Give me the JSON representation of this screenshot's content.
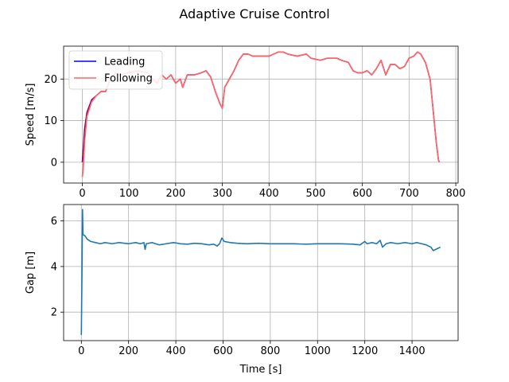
{
  "figure": {
    "title": "Adaptive Cruise Control"
  },
  "chart_data": [
    {
      "type": "line",
      "ylabel": "Speed [m/s]",
      "xlabel": "",
      "xlim": [
        -40,
        805
      ],
      "ylim": [
        -5,
        27.9
      ],
      "xticks": [
        0,
        100,
        200,
        300,
        400,
        500,
        600,
        700,
        800
      ],
      "yticks": [
        0,
        10,
        20
      ],
      "grid": true,
      "legend": "top-left",
      "series": [
        {
          "name": "Leading",
          "color": "#0000ff",
          "points": [
            [
              0,
              0
            ],
            [
              5,
              8
            ],
            [
              10,
              12
            ],
            [
              20,
              15
            ],
            [
              30,
              16
            ],
            [
              40,
              17
            ],
            [
              50,
              17
            ],
            [
              60,
              20
            ],
            [
              70,
              21.5
            ],
            [
              80,
              21
            ],
            [
              100,
              21.5
            ],
            [
              120,
              22
            ],
            [
              140,
              21.5
            ],
            [
              150,
              20
            ],
            [
              160,
              19
            ],
            [
              170,
              21
            ],
            [
              180,
              20
            ],
            [
              190,
              21
            ],
            [
              200,
              19
            ],
            [
              210,
              20
            ],
            [
              215,
              18
            ],
            [
              225,
              21
            ],
            [
              240,
              21
            ],
            [
              255,
              21.5
            ],
            [
              265,
              22
            ],
            [
              275,
              20.5
            ],
            [
              285,
              17
            ],
            [
              295,
              14
            ],
            [
              300,
              13
            ],
            [
              305,
              18
            ],
            [
              315,
              20
            ],
            [
              325,
              22
            ],
            [
              335,
              24.5
            ],
            [
              345,
              26
            ],
            [
              355,
              26
            ],
            [
              365,
              25.5
            ],
            [
              380,
              25.5
            ],
            [
              400,
              25.5
            ],
            [
              420,
              26.5
            ],
            [
              430,
              26.5
            ],
            [
              440,
              26
            ],
            [
              460,
              25.5
            ],
            [
              480,
              26
            ],
            [
              490,
              25
            ],
            [
              510,
              24.5
            ],
            [
              525,
              25
            ],
            [
              545,
              25
            ],
            [
              555,
              24.5
            ],
            [
              570,
              24
            ],
            [
              580,
              22
            ],
            [
              590,
              21.5
            ],
            [
              600,
              21.5
            ],
            [
              610,
              22
            ],
            [
              620,
              21
            ],
            [
              630,
              22.5
            ],
            [
              640,
              24.5
            ],
            [
              650,
              21
            ],
            [
              660,
              23.5
            ],
            [
              670,
              23.5
            ],
            [
              680,
              22.5
            ],
            [
              690,
              23
            ],
            [
              700,
              25
            ],
            [
              710,
              25.5
            ],
            [
              718,
              26.5
            ],
            [
              725,
              26
            ],
            [
              735,
              24
            ],
            [
              745,
              20
            ],
            [
              752,
              12
            ],
            [
              758,
              5
            ],
            [
              763,
              0.5
            ],
            [
              765,
              0
            ]
          ]
        },
        {
          "name": "Following",
          "color": "#ff6666",
          "points": [
            [
              0,
              -3.5
            ],
            [
              2,
              -1.5
            ],
            [
              5,
              5
            ],
            [
              10,
              11
            ],
            [
              20,
              14.5
            ],
            [
              30,
              16
            ],
            [
              40,
              17
            ],
            [
              50,
              17
            ],
            [
              60,
              20
            ],
            [
              70,
              21.5
            ],
            [
              80,
              21
            ],
            [
              100,
              21.5
            ],
            [
              120,
              22
            ],
            [
              140,
              21.5
            ],
            [
              150,
              20
            ],
            [
              160,
              19
            ],
            [
              170,
              21
            ],
            [
              180,
              20
            ],
            [
              190,
              21
            ],
            [
              200,
              19
            ],
            [
              210,
              20
            ],
            [
              215,
              18
            ],
            [
              225,
              21
            ],
            [
              240,
              21
            ],
            [
              255,
              21.5
            ],
            [
              265,
              22
            ],
            [
              275,
              20.5
            ],
            [
              285,
              17
            ],
            [
              295,
              14
            ],
            [
              300,
              13
            ],
            [
              305,
              18
            ],
            [
              315,
              20
            ],
            [
              325,
              22
            ],
            [
              335,
              24.5
            ],
            [
              345,
              26
            ],
            [
              355,
              26
            ],
            [
              365,
              25.5
            ],
            [
              380,
              25.5
            ],
            [
              400,
              25.5
            ],
            [
              420,
              26.5
            ],
            [
              430,
              26.5
            ],
            [
              440,
              26
            ],
            [
              460,
              25.5
            ],
            [
              480,
              26
            ],
            [
              490,
              25
            ],
            [
              510,
              24.5
            ],
            [
              525,
              25
            ],
            [
              545,
              25
            ],
            [
              555,
              24.5
            ],
            [
              570,
              24
            ],
            [
              580,
              22
            ],
            [
              590,
              21.5
            ],
            [
              600,
              21.5
            ],
            [
              610,
              22
            ],
            [
              620,
              21
            ],
            [
              630,
              22.5
            ],
            [
              640,
              24.5
            ],
            [
              650,
              21
            ],
            [
              660,
              23.5
            ],
            [
              670,
              23.5
            ],
            [
              680,
              22.5
            ],
            [
              690,
              23
            ],
            [
              700,
              25
            ],
            [
              710,
              25.5
            ],
            [
              718,
              26.5
            ],
            [
              725,
              26
            ],
            [
              735,
              24
            ],
            [
              745,
              20
            ],
            [
              752,
              12
            ],
            [
              758,
              5
            ],
            [
              763,
              0.5
            ],
            [
              765,
              0
            ]
          ]
        }
      ],
      "overlap_color": "#7f007f"
    },
    {
      "type": "line",
      "ylabel": "Gap [m]",
      "xlabel": "Time [s]",
      "xlim": [
        -75,
        1595
      ],
      "ylim": [
        0.75,
        6.72
      ],
      "xticks": [
        0,
        200,
        400,
        600,
        800,
        1000,
        1200,
        1400
      ],
      "yticks": [
        2,
        4,
        6
      ],
      "grid": true,
      "series": [
        {
          "color": "#1f77b4",
          "points": [
            [
              0,
              1
            ],
            [
              3,
              4
            ],
            [
              5,
              6.5
            ],
            [
              7,
              5.4
            ],
            [
              15,
              5.35
            ],
            [
              25,
              5.2
            ],
            [
              40,
              5.1
            ],
            [
              60,
              5.05
            ],
            [
              80,
              5.0
            ],
            [
              100,
              5.05
            ],
            [
              130,
              5.0
            ],
            [
              160,
              5.05
            ],
            [
              200,
              5.0
            ],
            [
              230,
              5.05
            ],
            [
              250,
              5.0
            ],
            [
              265,
              5.05
            ],
            [
              270,
              4.75
            ],
            [
              275,
              5.0
            ],
            [
              300,
              5.05
            ],
            [
              330,
              4.95
            ],
            [
              360,
              5.0
            ],
            [
              390,
              5.05
            ],
            [
              420,
              5.0
            ],
            [
              450,
              4.98
            ],
            [
              480,
              5.02
            ],
            [
              510,
              5.0
            ],
            [
              540,
              4.95
            ],
            [
              560,
              4.98
            ],
            [
              575,
              4.9
            ],
            [
              585,
              5.0
            ],
            [
              595,
              5.25
            ],
            [
              605,
              5.1
            ],
            [
              630,
              5.05
            ],
            [
              660,
              5.02
            ],
            [
              700,
              5.0
            ],
            [
              750,
              5.02
            ],
            [
              800,
              5.0
            ],
            [
              850,
              5.0
            ],
            [
              900,
              5.0
            ],
            [
              950,
              4.98
            ],
            [
              1000,
              5.0
            ],
            [
              1050,
              5.0
            ],
            [
              1100,
              5.0
            ],
            [
              1150,
              4.98
            ],
            [
              1180,
              4.95
            ],
            [
              1200,
              5.1
            ],
            [
              1210,
              5.0
            ],
            [
              1230,
              5.05
            ],
            [
              1250,
              5.0
            ],
            [
              1265,
              5.15
            ],
            [
              1275,
              4.85
            ],
            [
              1290,
              5.0
            ],
            [
              1310,
              5.05
            ],
            [
              1340,
              5.0
            ],
            [
              1370,
              5.05
            ],
            [
              1400,
              5.0
            ],
            [
              1420,
              5.05
            ],
            [
              1440,
              5.0
            ],
            [
              1460,
              4.95
            ],
            [
              1480,
              4.85
            ],
            [
              1490,
              4.7
            ],
            [
              1500,
              4.75
            ],
            [
              1510,
              4.8
            ],
            [
              1520,
              4.85
            ]
          ]
        }
      ]
    }
  ]
}
